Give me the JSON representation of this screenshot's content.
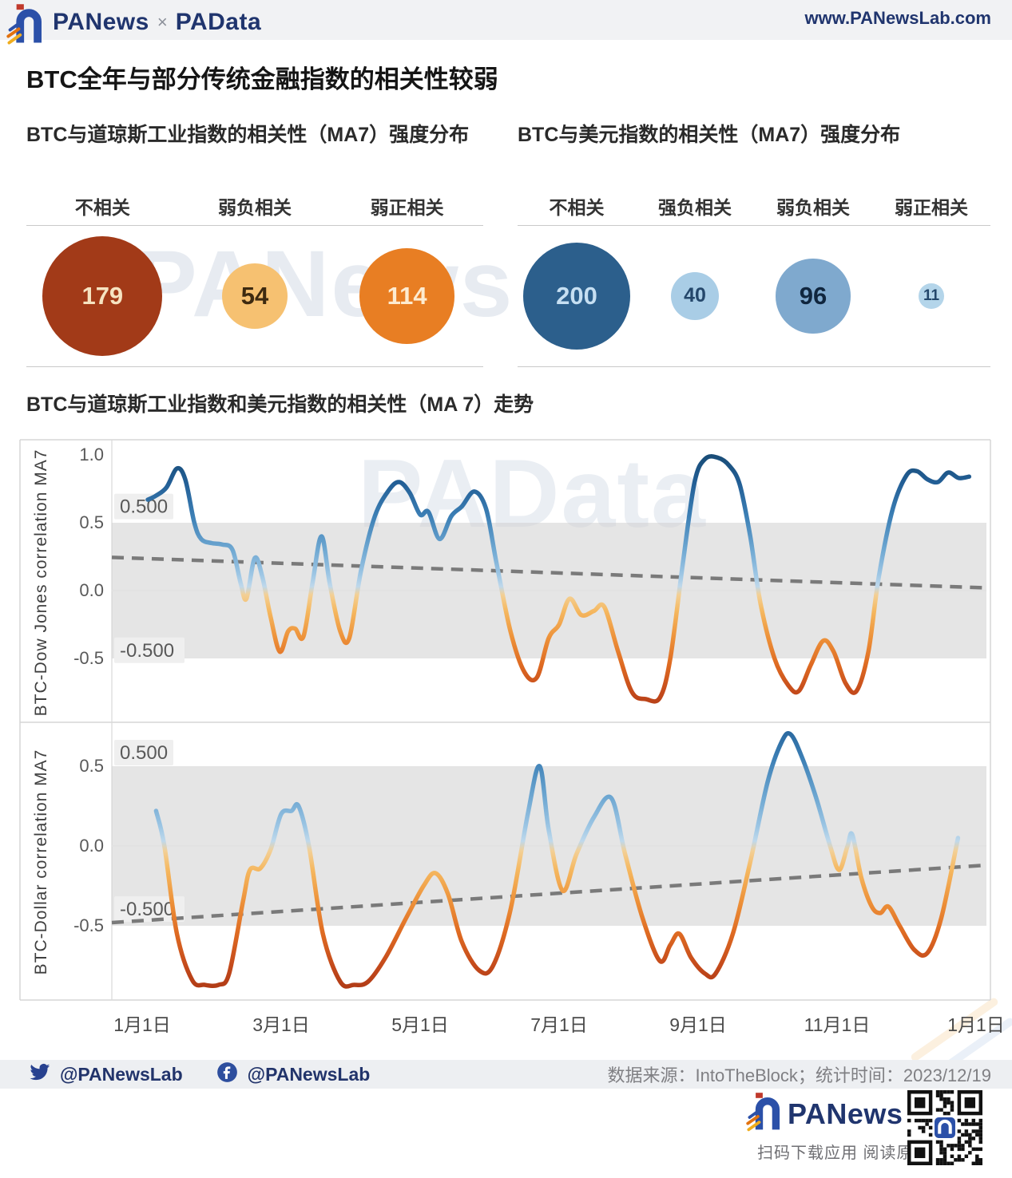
{
  "header": {
    "brand": "PANews",
    "cross": "×",
    "brand2": "PAData",
    "url": "www.PANewsLab.com"
  },
  "page_title": "BTC全年与部分传统金融指数的相关性较弱",
  "trend_title": "BTC与道琼斯工业指数和美元指数的相关性（MA 7）走势",
  "watermarks": {
    "bubbles": "PANews",
    "trend": "PAData"
  },
  "footer": {
    "twitter_handle": "@PANewsLab",
    "facebook_handle": "@PANewsLab",
    "source": "数据来源：IntoTheBlock；统计时间：2023/12/19",
    "brand": "PANews",
    "qr_caption": "扫码下载应用 阅读原文"
  },
  "chart_data": [
    {
      "type": "bubble",
      "title": "BTC与道琼斯工业指数的相关性（MA7）强度分布",
      "categories": [
        "不相关",
        "弱负相关",
        "弱正相关"
      ],
      "values": [
        179,
        54,
        114
      ],
      "colors": [
        "#a23a18",
        "#f6c171",
        "#e87e23"
      ],
      "label_colors": [
        "#f6e3c1",
        "#3d2a10",
        "#fdebd0"
      ]
    },
    {
      "type": "bubble",
      "title": "BTC与美元指数的相关性（MA7）强度分布",
      "categories": [
        "不相关",
        "强负相关",
        "弱负相关",
        "弱正相关"
      ],
      "values": [
        200,
        40,
        96,
        11
      ],
      "colors": [
        "#2c5f8c",
        "#a9cde6",
        "#7fa9ce",
        "#b4d5ea"
      ],
      "label_colors": [
        "#c6dff2",
        "#24476b",
        "#10263e",
        "#24476b"
      ]
    },
    {
      "type": "line",
      "name": "BTC-Dow Jones correlation MA7",
      "x_ticks": [
        "1月1日",
        "3月1日",
        "5月1日",
        "7月1日",
        "9月1日",
        "11月1日",
        "1月1日"
      ],
      "y_ticks": [
        "1.0",
        "0.5",
        "0.0",
        "-0.5"
      ],
      "y_tick_values": [
        1.0,
        0.5,
        0.0,
        -0.5
      ],
      "ylim": [
        -0.95,
        1.1
      ],
      "band": [
        -0.5,
        0.5
      ],
      "annotations": [
        {
          "text": "0.500",
          "value": 0.62
        },
        {
          "text": "-0.500",
          "value": -0.44
        }
      ],
      "trend_line": {
        "start": 0.245,
        "end": 0.02
      },
      "points": [
        [
          0.08,
          0.67
        ],
        [
          0.2,
          0.7
        ],
        [
          0.35,
          0.76
        ],
        [
          0.5,
          0.9
        ],
        [
          0.62,
          0.82
        ],
        [
          0.75,
          0.5
        ],
        [
          0.85,
          0.38
        ],
        [
          1.0,
          0.35
        ],
        [
          1.15,
          0.34
        ],
        [
          1.3,
          0.3
        ],
        [
          1.42,
          0.05
        ],
        [
          1.5,
          -0.06
        ],
        [
          1.62,
          0.24
        ],
        [
          1.73,
          0.1
        ],
        [
          1.85,
          -0.2
        ],
        [
          1.98,
          -0.45
        ],
        [
          2.1,
          -0.3
        ],
        [
          2.2,
          -0.28
        ],
        [
          2.32,
          -0.34
        ],
        [
          2.45,
          0.05
        ],
        [
          2.58,
          0.4
        ],
        [
          2.7,
          0.05
        ],
        [
          2.85,
          -0.3
        ],
        [
          2.98,
          -0.35
        ],
        [
          3.15,
          0.15
        ],
        [
          3.35,
          0.55
        ],
        [
          3.55,
          0.74
        ],
        [
          3.7,
          0.8
        ],
        [
          3.85,
          0.72
        ],
        [
          4.0,
          0.56
        ],
        [
          4.12,
          0.58
        ],
        [
          4.28,
          0.38
        ],
        [
          4.45,
          0.55
        ],
        [
          4.6,
          0.62
        ],
        [
          4.78,
          0.73
        ],
        [
          4.95,
          0.6
        ],
        [
          5.1,
          0.2
        ],
        [
          5.3,
          -0.3
        ],
        [
          5.5,
          -0.6
        ],
        [
          5.68,
          -0.64
        ],
        [
          5.85,
          -0.35
        ],
        [
          6.0,
          -0.25
        ],
        [
          6.15,
          -0.06
        ],
        [
          6.32,
          -0.18
        ],
        [
          6.5,
          -0.15
        ],
        [
          6.65,
          -0.12
        ],
        [
          6.85,
          -0.45
        ],
        [
          7.05,
          -0.75
        ],
        [
          7.25,
          -0.8
        ],
        [
          7.45,
          -0.79
        ],
        [
          7.6,
          -0.5
        ],
        [
          7.78,
          0.2
        ],
        [
          7.95,
          0.8
        ],
        [
          8.1,
          0.97
        ],
        [
          8.28,
          0.98
        ],
        [
          8.45,
          0.92
        ],
        [
          8.6,
          0.78
        ],
        [
          8.75,
          0.4
        ],
        [
          8.9,
          -0.1
        ],
        [
          9.1,
          -0.5
        ],
        [
          9.3,
          -0.7
        ],
        [
          9.45,
          -0.74
        ],
        [
          9.62,
          -0.55
        ],
        [
          9.8,
          -0.37
        ],
        [
          9.95,
          -0.45
        ],
        [
          10.12,
          -0.68
        ],
        [
          10.28,
          -0.74
        ],
        [
          10.45,
          -0.45
        ],
        [
          10.6,
          0.1
        ],
        [
          10.8,
          0.6
        ],
        [
          11.0,
          0.85
        ],
        [
          11.15,
          0.88
        ],
        [
          11.3,
          0.82
        ],
        [
          11.45,
          0.8
        ],
        [
          11.6,
          0.87
        ],
        [
          11.75,
          0.83
        ],
        [
          11.9,
          0.84
        ]
      ]
    },
    {
      "type": "line",
      "name": "BTC-Dollar correlation MA7",
      "x_ticks": [
        "1月1日",
        "3月1日",
        "5月1日",
        "7月1日",
        "9月1日",
        "11月1日",
        "1月1日"
      ],
      "y_ticks": [
        "0.5",
        "0.0",
        "-0.5"
      ],
      "y_tick_values": [
        0.5,
        0.0,
        -0.5
      ],
      "ylim": [
        -0.965,
        0.775
      ],
      "band": [
        -0.5,
        0.5
      ],
      "annotations": [
        {
          "text": "0.500",
          "value": 0.585
        },
        {
          "text": "-0.500",
          "value": -0.395
        }
      ],
      "trend_line": {
        "start": -0.48,
        "end": -0.12
      },
      "points": [
        [
          0.2,
          0.22
        ],
        [
          0.32,
          0.0
        ],
        [
          0.5,
          -0.55
        ],
        [
          0.72,
          -0.84
        ],
        [
          0.9,
          -0.87
        ],
        [
          1.1,
          -0.87
        ],
        [
          1.25,
          -0.8
        ],
        [
          1.45,
          -0.35
        ],
        [
          1.55,
          -0.15
        ],
        [
          1.7,
          -0.14
        ],
        [
          1.85,
          -0.02
        ],
        [
          2.0,
          0.2
        ],
        [
          2.15,
          0.22
        ],
        [
          2.25,
          0.25
        ],
        [
          2.4,
          0.0
        ],
        [
          2.6,
          -0.55
        ],
        [
          2.85,
          -0.85
        ],
        [
          3.05,
          -0.87
        ],
        [
          3.25,
          -0.85
        ],
        [
          3.5,
          -0.7
        ],
        [
          3.8,
          -0.45
        ],
        [
          4.05,
          -0.25
        ],
        [
          4.22,
          -0.17
        ],
        [
          4.4,
          -0.3
        ],
        [
          4.6,
          -0.6
        ],
        [
          4.85,
          -0.78
        ],
        [
          5.05,
          -0.75
        ],
        [
          5.3,
          -0.4
        ],
        [
          5.55,
          0.2
        ],
        [
          5.72,
          0.5
        ],
        [
          5.85,
          0.1
        ],
        [
          6.05,
          -0.28
        ],
        [
          6.25,
          -0.05
        ],
        [
          6.5,
          0.18
        ],
        [
          6.75,
          0.3
        ],
        [
          6.95,
          -0.05
        ],
        [
          7.2,
          -0.45
        ],
        [
          7.45,
          -0.72
        ],
        [
          7.6,
          -0.62
        ],
        [
          7.73,
          -0.55
        ],
        [
          7.9,
          -0.7
        ],
        [
          8.1,
          -0.8
        ],
        [
          8.25,
          -0.8
        ],
        [
          8.5,
          -0.55
        ],
        [
          8.75,
          -0.1
        ],
        [
          9.0,
          0.4
        ],
        [
          9.2,
          0.65
        ],
        [
          9.33,
          0.7
        ],
        [
          9.5,
          0.55
        ],
        [
          9.7,
          0.3
        ],
        [
          9.9,
          0.0
        ],
        [
          10.03,
          -0.15
        ],
        [
          10.15,
          0.0
        ],
        [
          10.22,
          0.07
        ],
        [
          10.35,
          -0.2
        ],
        [
          10.5,
          -0.38
        ],
        [
          10.62,
          -0.42
        ],
        [
          10.74,
          -0.38
        ],
        [
          10.9,
          -0.5
        ],
        [
          11.11,
          -0.65
        ],
        [
          11.3,
          -0.67
        ],
        [
          11.5,
          -0.45
        ],
        [
          11.74,
          0.05
        ]
      ]
    }
  ]
}
